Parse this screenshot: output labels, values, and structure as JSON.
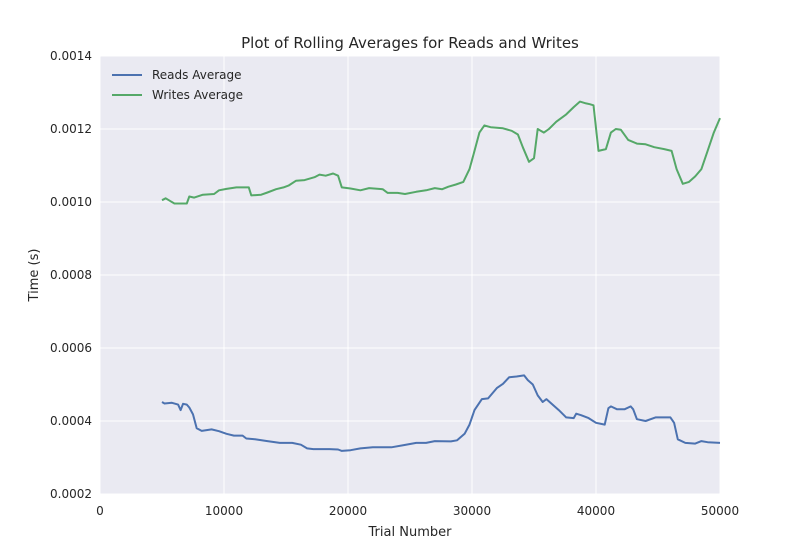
{
  "chart_data": {
    "type": "line",
    "title": "Plot of Rolling Averages for Reads and Writes",
    "xlabel": "Trial Number",
    "ylabel": "Time (s)",
    "xlim": [
      0,
      50000
    ],
    "ylim": [
      0.0002,
      0.0014
    ],
    "x_ticks": [
      "0",
      "10000",
      "20000",
      "30000",
      "40000",
      "50000"
    ],
    "y_ticks": [
      "0.0002",
      "0.0004",
      "0.0006",
      "0.0008",
      "0.0010",
      "0.0012",
      "0.0014"
    ],
    "grid": true,
    "legend": "top-left",
    "colors": {
      "background": "#eaeaf2",
      "grid": "#ffffff",
      "reads": "#4c72b0",
      "writes": "#55a868"
    },
    "series": [
      {
        "name": "Reads Average",
        "points": [
          [
            5000,
            0.000452
          ],
          [
            5200,
            0.000448
          ],
          [
            5800,
            0.00045
          ],
          [
            6300,
            0.000445
          ],
          [
            6500,
            0.00043
          ],
          [
            6700,
            0.000447
          ],
          [
            7000,
            0.000445
          ],
          [
            7200,
            0.000437
          ],
          [
            7500,
            0.000418
          ],
          [
            7800,
            0.00038
          ],
          [
            8200,
            0.000373
          ],
          [
            9000,
            0.000377
          ],
          [
            9600,
            0.000372
          ],
          [
            10200,
            0.000365
          ],
          [
            10800,
            0.00036
          ],
          [
            11500,
            0.00036
          ],
          [
            11800,
            0.000352
          ],
          [
            12500,
            0.00035
          ],
          [
            13500,
            0.000345
          ],
          [
            14500,
            0.00034
          ],
          [
            15500,
            0.00034
          ],
          [
            16200,
            0.000335
          ],
          [
            16700,
            0.000325
          ],
          [
            17200,
            0.000323
          ],
          [
            18500,
            0.000323
          ],
          [
            19200,
            0.000322
          ],
          [
            19500,
            0.000318
          ],
          [
            20200,
            0.00032
          ],
          [
            21000,
            0.000325
          ],
          [
            22000,
            0.000328
          ],
          [
            23500,
            0.000328
          ],
          [
            24500,
            0.000334
          ],
          [
            25500,
            0.00034
          ],
          [
            26300,
            0.00034
          ],
          [
            27000,
            0.000345
          ],
          [
            28300,
            0.000344
          ],
          [
            28800,
            0.000347
          ],
          [
            29400,
            0.000365
          ],
          [
            29800,
            0.00039
          ],
          [
            30200,
            0.00043
          ],
          [
            30800,
            0.00046
          ],
          [
            31300,
            0.000462
          ],
          [
            32000,
            0.00049
          ],
          [
            32500,
            0.000502
          ],
          [
            33000,
            0.00052
          ],
          [
            33600,
            0.000522
          ],
          [
            34200,
            0.000525
          ],
          [
            34500,
            0.000512
          ],
          [
            34900,
            0.0005
          ],
          [
            35300,
            0.00047
          ],
          [
            35700,
            0.000452
          ],
          [
            36000,
            0.00046
          ],
          [
            36500,
            0.000445
          ],
          [
            37000,
            0.00043
          ],
          [
            37600,
            0.00041
          ],
          [
            38200,
            0.000408
          ],
          [
            38400,
            0.00042
          ],
          [
            38800,
            0.000416
          ],
          [
            39400,
            0.000408
          ],
          [
            40000,
            0.000395
          ],
          [
            40700,
            0.00039
          ],
          [
            41000,
            0.000435
          ],
          [
            41200,
            0.00044
          ],
          [
            41700,
            0.000432
          ],
          [
            42300,
            0.000432
          ],
          [
            42800,
            0.00044
          ],
          [
            43000,
            0.000432
          ],
          [
            43300,
            0.000405
          ],
          [
            44000,
            0.0004
          ],
          [
            44800,
            0.00041
          ],
          [
            45500,
            0.00041
          ],
          [
            46000,
            0.00041
          ],
          [
            46300,
            0.000395
          ],
          [
            46600,
            0.00035
          ],
          [
            47200,
            0.00034
          ],
          [
            48000,
            0.000338
          ],
          [
            48500,
            0.000345
          ],
          [
            49000,
            0.000342
          ],
          [
            50000,
            0.00034
          ]
        ]
      },
      {
        "name": "Writes Average",
        "points": [
          [
            5000,
            0.001005
          ],
          [
            5300,
            0.00101
          ],
          [
            5700,
            0.001002
          ],
          [
            6000,
            0.000996
          ],
          [
            7000,
            0.000996
          ],
          [
            7200,
            0.001015
          ],
          [
            7600,
            0.001012
          ],
          [
            8300,
            0.00102
          ],
          [
            9200,
            0.001022
          ],
          [
            9600,
            0.001032
          ],
          [
            10200,
            0.001036
          ],
          [
            11000,
            0.00104
          ],
          [
            12000,
            0.00104
          ],
          [
            12200,
            0.001018
          ],
          [
            13000,
            0.00102
          ],
          [
            13500,
            0.001026
          ],
          [
            14200,
            0.001035
          ],
          [
            14800,
            0.00104
          ],
          [
            15200,
            0.001045
          ],
          [
            15800,
            0.001058
          ],
          [
            16500,
            0.00106
          ],
          [
            17300,
            0.001068
          ],
          [
            17700,
            0.001075
          ],
          [
            18200,
            0.001072
          ],
          [
            18800,
            0.001078
          ],
          [
            19200,
            0.001072
          ],
          [
            19500,
            0.00104
          ],
          [
            20200,
            0.001037
          ],
          [
            21000,
            0.001032
          ],
          [
            21700,
            0.001038
          ],
          [
            22800,
            0.001035
          ],
          [
            23200,
            0.001025
          ],
          [
            24000,
            0.001025
          ],
          [
            24600,
            0.001022
          ],
          [
            25500,
            0.001028
          ],
          [
            26300,
            0.001032
          ],
          [
            27000,
            0.001038
          ],
          [
            27600,
            0.001035
          ],
          [
            28100,
            0.001042
          ],
          [
            28700,
            0.001048
          ],
          [
            29300,
            0.001055
          ],
          [
            29800,
            0.00109
          ],
          [
            30200,
            0.00114
          ],
          [
            30600,
            0.00119
          ],
          [
            31000,
            0.00121
          ],
          [
            31500,
            0.001205
          ],
          [
            32500,
            0.001202
          ],
          [
            33200,
            0.001195
          ],
          [
            33700,
            0.001185
          ],
          [
            34100,
            0.00115
          ],
          [
            34600,
            0.00111
          ],
          [
            35000,
            0.00112
          ],
          [
            35300,
            0.0012
          ],
          [
            35800,
            0.00119
          ],
          [
            36200,
            0.0012
          ],
          [
            36800,
            0.00122
          ],
          [
            37600,
            0.00124
          ],
          [
            38200,
            0.00126
          ],
          [
            38700,
            0.001275
          ],
          [
            39200,
            0.00127
          ],
          [
            39500,
            0.001268
          ],
          [
            39800,
            0.001265
          ],
          [
            40200,
            0.00114
          ],
          [
            40800,
            0.001145
          ],
          [
            41200,
            0.00119
          ],
          [
            41600,
            0.0012
          ],
          [
            42000,
            0.001198
          ],
          [
            42600,
            0.00117
          ],
          [
            43300,
            0.00116
          ],
          [
            44000,
            0.001158
          ],
          [
            44700,
            0.00115
          ],
          [
            45500,
            0.001145
          ],
          [
            46100,
            0.00114
          ],
          [
            46500,
            0.00109
          ],
          [
            47000,
            0.00105
          ],
          [
            47500,
            0.001055
          ],
          [
            48000,
            0.00107
          ],
          [
            48500,
            0.00109
          ],
          [
            49000,
            0.00114
          ],
          [
            49500,
            0.00119
          ],
          [
            50000,
            0.00123
          ]
        ]
      }
    ]
  }
}
